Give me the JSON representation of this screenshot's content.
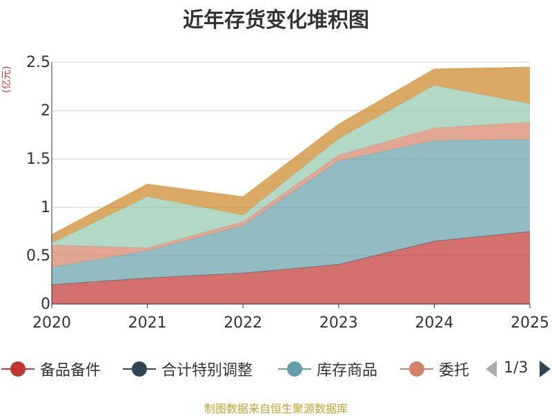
{
  "title": "近年存货变化堆积图",
  "unit_label": "(亿元)",
  "source": "制图数据来自恒生聚源数据库",
  "legend_page": "1/3",
  "legend": [
    {
      "name": "备品备件",
      "color": "#c23531"
    },
    {
      "name": "合计特别调整",
      "color": "#2f4554"
    },
    {
      "name": "库存商品",
      "color": "#61a0a8"
    },
    {
      "name": "委托",
      "color": "#d48265"
    }
  ],
  "chart_data": {
    "type": "area",
    "stacked": true,
    "title": "近年存货变化堆积图",
    "ylabel": "(亿元)",
    "x": [
      "2020",
      "2021",
      "2022",
      "2023",
      "2024",
      "2025"
    ],
    "ylim": [
      0,
      2.5
    ],
    "yticks": [
      "0",
      "0.5",
      "1",
      "1.5",
      "2",
      "2.5"
    ],
    "grid": true,
    "legend_position": "bottom",
    "series": [
      {
        "name": "备品备件",
        "color": "#c23531",
        "values": [
          0.2,
          0.27,
          0.32,
          0.41,
          0.65,
          0.75
        ]
      },
      {
        "name": "合计特别调整",
        "color": "#2f4554",
        "values": [
          0,
          0,
          0,
          0,
          0,
          0
        ]
      },
      {
        "name": "库存商品",
        "color": "#61a0a8",
        "values": [
          0.18,
          0.28,
          0.49,
          1.07,
          1.04,
          0.95
        ]
      },
      {
        "name": "委托",
        "color": "#d48265",
        "values": [
          0.23,
          0.03,
          0.04,
          0.06,
          0.13,
          0.18
        ]
      },
      {
        "color": "#91c7ae",
        "values": [
          0.02,
          0.53,
          0.07,
          0.17,
          0.44,
          0.19
        ]
      },
      {
        "color": "#ca8622",
        "values": [
          0.09,
          0.13,
          0.19,
          0.15,
          0.17,
          0.38
        ]
      }
    ]
  }
}
